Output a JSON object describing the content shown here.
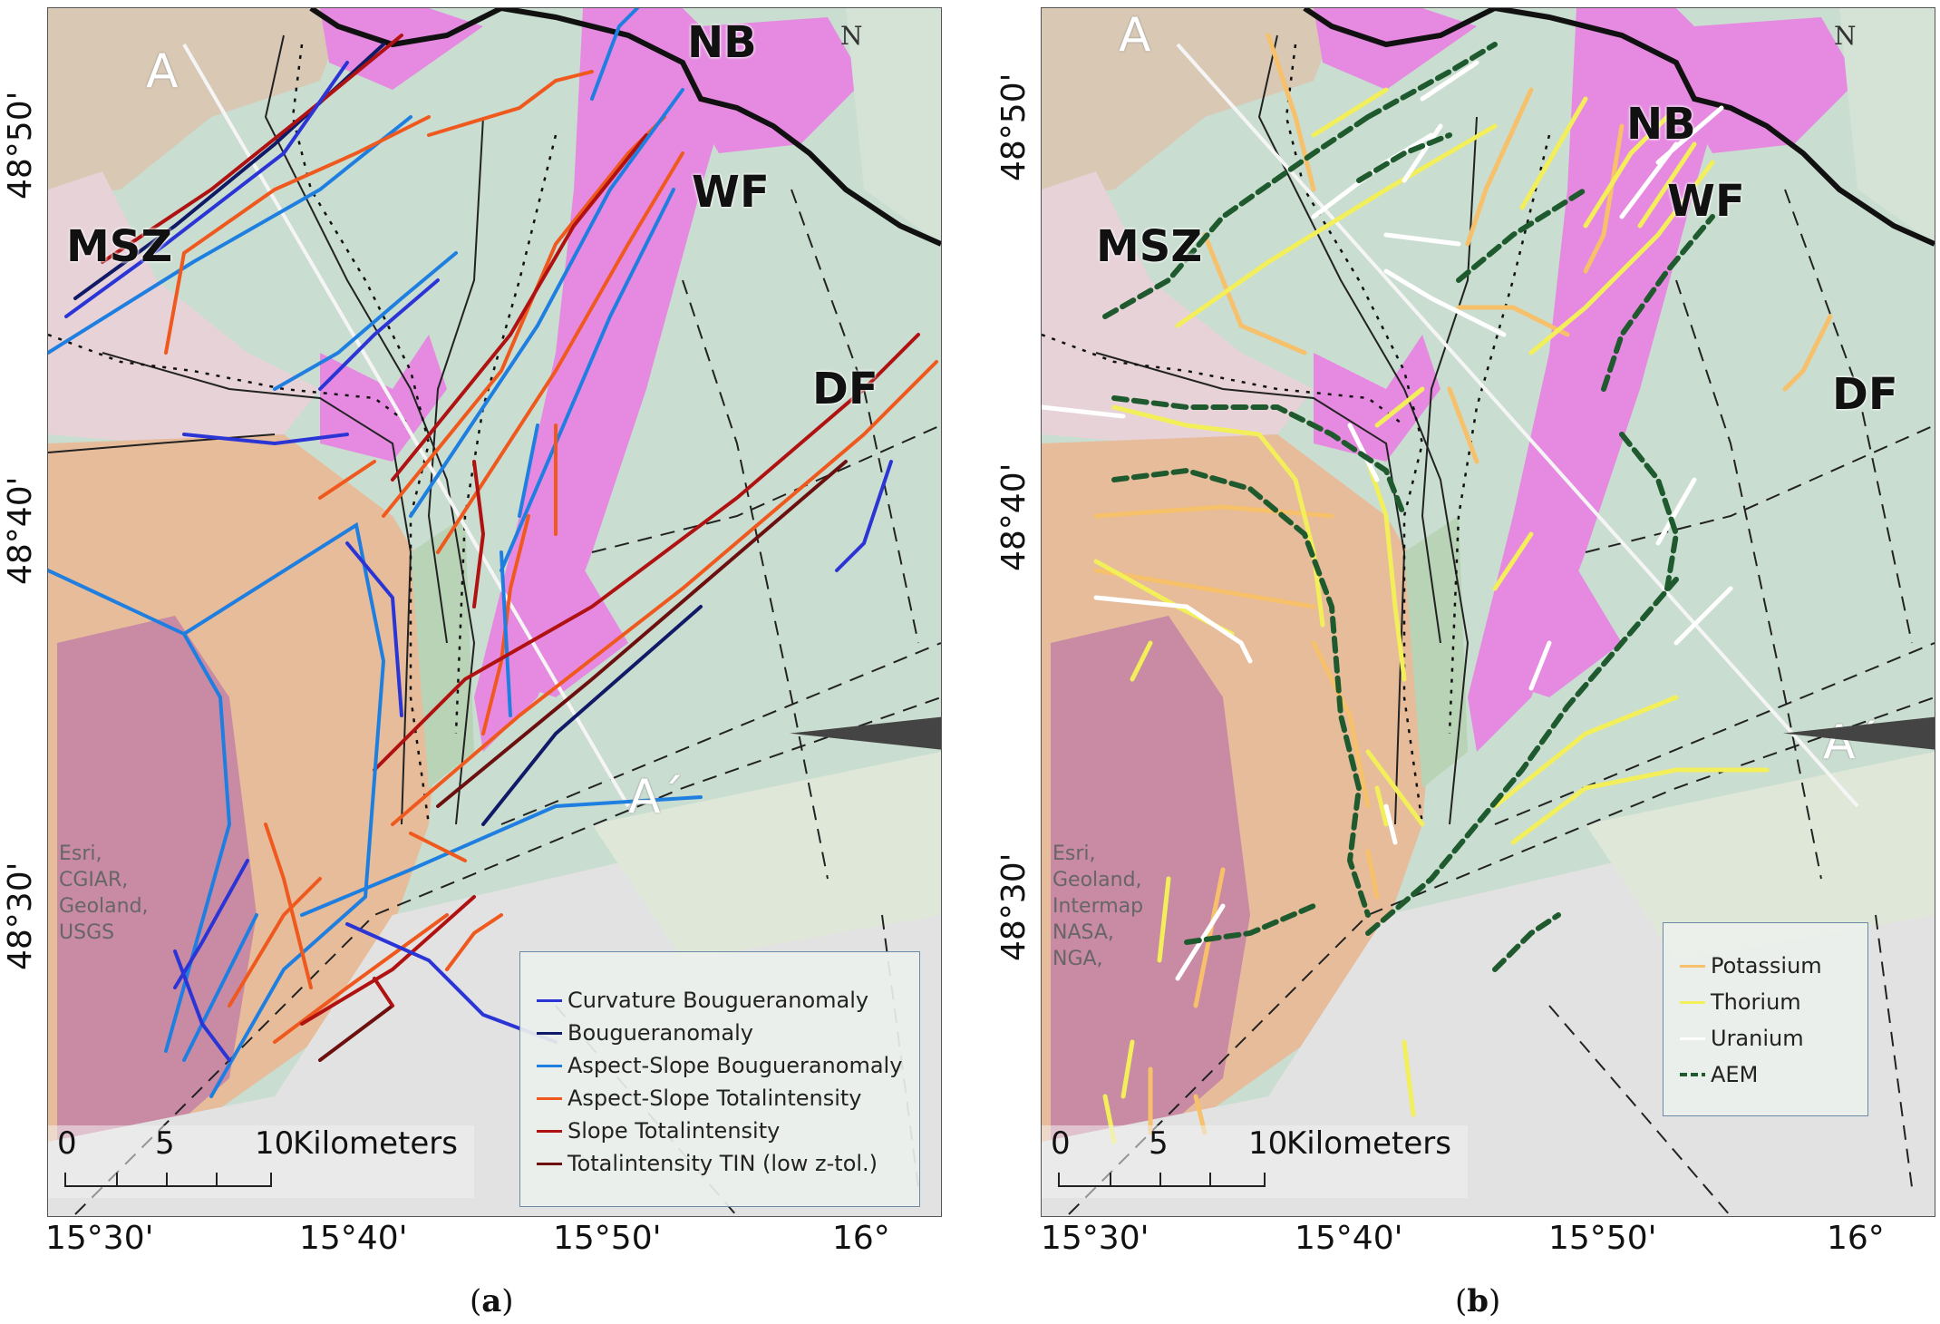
{
  "panels": [
    {
      "id": "a",
      "labels": {
        "msz": "MSZ",
        "nb": "NB",
        "wf": "WF",
        "df": "DF",
        "a_start": "A",
        "a_end": "A´"
      },
      "attribution": [
        "Esri,",
        "CGIAR,",
        "Geoland,",
        "USGS"
      ],
      "north": "N",
      "scale": {
        "units": "Kilometers",
        "ticks": [
          "0",
          "5",
          "10"
        ]
      },
      "legend": [
        {
          "label": "Curvature Bougueranomaly",
          "color": "#2b35d6"
        },
        {
          "label": "Bougueranomaly",
          "color": "#101a66"
        },
        {
          "label": "Aspect-Slope Bougueranomaly",
          "color": "#1f7fe0"
        },
        {
          "label": "Aspect-Slope Totalintensity",
          "color": "#f0591e"
        },
        {
          "label": "Slope Totalintensity",
          "color": "#b01212"
        },
        {
          "label": "Totalintensity TIN (low z-tol.)",
          "color": "#6b0f0f"
        }
      ],
      "caption_letter": "a"
    },
    {
      "id": "b",
      "labels": {
        "msz": "MSZ",
        "nb": "NB",
        "wf": "WF",
        "df": "DF",
        "a_start": "A",
        "a_end": "A´"
      },
      "attribution": [
        "Esri,",
        "Geoland,",
        "Intermap",
        "NASA,",
        "NGA,"
      ],
      "north": "N",
      "scale": {
        "units": "Kilometers",
        "ticks": [
          "0",
          "5",
          "10"
        ]
      },
      "legend": [
        {
          "label": "Potassium",
          "color": "#f7c06a"
        },
        {
          "label": "Thorium",
          "color": "#f2ef5a"
        },
        {
          "label": "Uranium",
          "color": "#ffffff"
        },
        {
          "label": "AEM",
          "color": "#1f5a2e"
        }
      ],
      "caption_letter": "b"
    }
  ],
  "axes": {
    "lon": [
      "15°30'",
      "15°40'",
      "15°50'",
      "16°"
    ],
    "lat": [
      "48°50'",
      "48°40'",
      "48°30'"
    ]
  },
  "colors": {
    "background_green": "#c9ddd0",
    "granite_magenta": "#e58ae0",
    "basin_mauve": "#c98aa4",
    "orange_unit": "#e9b894",
    "pale_gray": "#e2e2e2",
    "profile_line": "#f5f5f5"
  }
}
